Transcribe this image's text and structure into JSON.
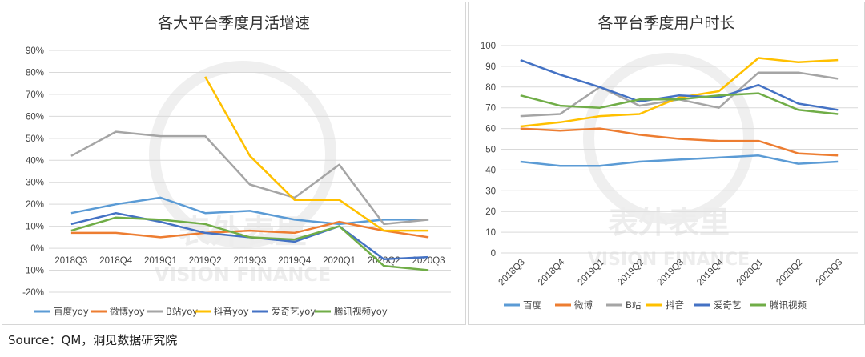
{
  "source": "Source：QM，洞见数据研究院",
  "watermark": {
    "cn": "表外表里",
    "en": "VISION FINANCE"
  },
  "chart_data": [
    {
      "type": "line",
      "title": "各大平台季度月活增速",
      "categories": [
        "2018Q3",
        "2018Q4",
        "2019Q1",
        "2019Q2",
        "2019Q3",
        "2019Q4",
        "2020Q1",
        "2020Q2",
        "2020Q3"
      ],
      "ylim": [
        -20,
        90
      ],
      "yticks": [
        -20,
        -10,
        0,
        10,
        20,
        30,
        40,
        50,
        60,
        70,
        80,
        90
      ],
      "ytick_labels": [
        "-20%",
        "-10%",
        "0%",
        "10%",
        "20%",
        "30%",
        "40%",
        "50%",
        "60%",
        "70%",
        "80%",
        "90%"
      ],
      "legend_position": "bottom",
      "series": [
        {
          "name": "百度yoy",
          "color": "#5b9bd5",
          "values": [
            16,
            20,
            23,
            16,
            17,
            13,
            11,
            13,
            13
          ]
        },
        {
          "name": "微博yoy",
          "color": "#ed7d31",
          "values": [
            7,
            7,
            5,
            7,
            8,
            7,
            12,
            8,
            5
          ]
        },
        {
          "name": "B站yoy",
          "color": "#a5a5a5",
          "values": [
            42,
            53,
            51,
            51,
            29,
            23,
            38,
            11,
            13
          ]
        },
        {
          "name": "抖音yoy",
          "color": "#ffc000",
          "values": [
            null,
            null,
            null,
            78,
            42,
            22,
            22,
            8,
            8
          ]
        },
        {
          "name": "爱奇艺yoy",
          "color": "#4472c4",
          "values": [
            11,
            16,
            12,
            7,
            5,
            3,
            10,
            -5,
            -4
          ]
        },
        {
          "name": "腾讯视频yoy",
          "color": "#70ad47",
          "values": [
            8,
            14,
            13,
            11,
            5,
            4,
            10,
            -8,
            -10
          ]
        }
      ]
    },
    {
      "type": "line",
      "title": "各平台季度用户时长",
      "categories": [
        "2018Q3",
        "2018Q4",
        "2019Q1",
        "2019Q2",
        "2019Q3",
        "2019Q4",
        "2020Q1",
        "2020Q2",
        "2020Q3"
      ],
      "ylim": [
        0,
        100
      ],
      "yticks": [
        0,
        10,
        20,
        30,
        40,
        50,
        60,
        70,
        80,
        90,
        100
      ],
      "ytick_labels": [
        "0",
        "10",
        "20",
        "30",
        "40",
        "50",
        "60",
        "70",
        "80",
        "90",
        "100"
      ],
      "legend_position": "bottom",
      "series": [
        {
          "name": "百度",
          "color": "#5b9bd5",
          "values": [
            44,
            42,
            42,
            44,
            45,
            46,
            47,
            43,
            44
          ]
        },
        {
          "name": "微博",
          "color": "#ed7d31",
          "values": [
            60,
            59,
            60,
            57,
            55,
            54,
            54,
            48,
            47
          ]
        },
        {
          "name": "B站",
          "color": "#a5a5a5",
          "values": [
            66,
            67,
            80,
            71,
            74,
            70,
            87,
            87,
            84
          ]
        },
        {
          "name": "抖音",
          "color": "#ffc000",
          "values": [
            61,
            63,
            66,
            67,
            75,
            78,
            94,
            92,
            93
          ]
        },
        {
          "name": "爱奇艺",
          "color": "#4472c4",
          "values": [
            93,
            86,
            80,
            73,
            76,
            75,
            81,
            72,
            69
          ]
        },
        {
          "name": "腾讯视频",
          "color": "#70ad47",
          "values": [
            76,
            71,
            70,
            74,
            74,
            76,
            77,
            69,
            67
          ]
        }
      ]
    }
  ]
}
